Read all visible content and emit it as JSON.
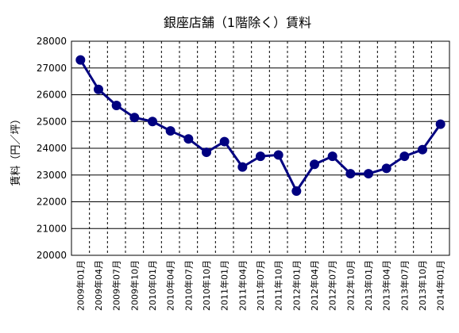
{
  "chart_data": {
    "type": "line",
    "title": "銀座店舗（1階除く）賃料",
    "xlabel": "",
    "ylabel": "賃料（円／坪）",
    "ylim": [
      20000,
      28000
    ],
    "yticks": [
      20000,
      21000,
      22000,
      23000,
      24000,
      25000,
      26000,
      27000,
      28000
    ],
    "grid": true,
    "legend": "none",
    "categories": [
      "2009年01月",
      "2009年04月",
      "2009年07月",
      "2009年10月",
      "2010年01月",
      "2010年04月",
      "2010年07月",
      "2010年10月",
      "2011年01月",
      "2011年04月",
      "2011年07月",
      "2011年10月",
      "2012年01月",
      "2012年04月",
      "2012年07月",
      "2012年10月",
      "2013年01月",
      "2013年04月",
      "2013年07月",
      "2013年10月",
      "2014年01月"
    ],
    "series": [
      {
        "color": "#000080",
        "values": [
          27300,
          26200,
          25600,
          25150,
          25000,
          24650,
          24350,
          23850,
          24250,
          23300,
          23700,
          23750,
          22400,
          23400,
          23700,
          23050,
          23050,
          23250,
          23700,
          23950,
          24900
        ]
      }
    ]
  }
}
